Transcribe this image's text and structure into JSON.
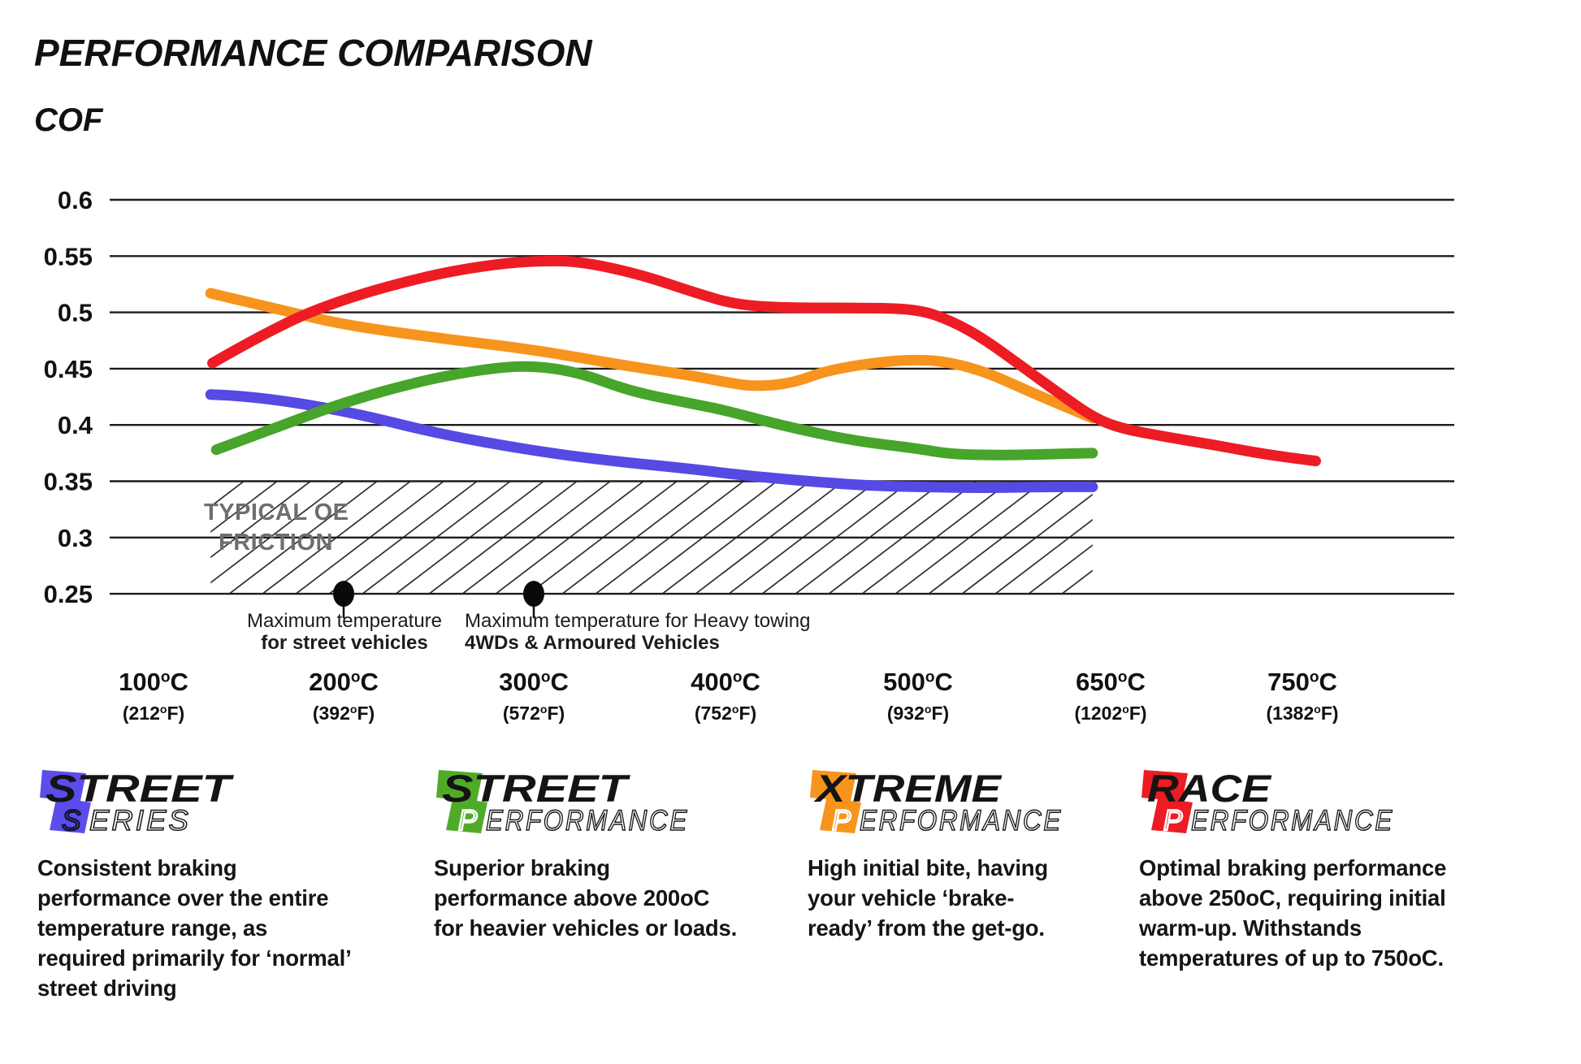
{
  "title": "PERFORMANCE COMPARISON",
  "cof_label": "COF",
  "chart_data": {
    "type": "line",
    "title": "PERFORMANCE COMPARISON",
    "ylabel": "COF",
    "xlabel": "",
    "ylim": [
      0.25,
      0.6
    ],
    "grid": true,
    "legend_position": "bottom",
    "y_ticks": [
      0.6,
      0.55,
      0.5,
      0.45,
      0.4,
      0.35,
      0.3,
      0.25
    ],
    "x_ticks": [
      {
        "value": 100,
        "c": "100°C",
        "f": "(212°F)"
      },
      {
        "value": 200,
        "c": "200°C",
        "f": "(392°F)"
      },
      {
        "value": 300,
        "c": "300°C",
        "f": "(572°F)"
      },
      {
        "value": 400,
        "c": "400°C",
        "f": "(752°F)"
      },
      {
        "value": 500,
        "c": "500°C",
        "f": "(932°F)"
      },
      {
        "value": 650,
        "c": "650°C",
        "f": "(1202°F)"
      },
      {
        "value": 750,
        "c": "750°C",
        "f": "(1382°F)"
      }
    ],
    "series": [
      {
        "name": "Street Series",
        "color": "#5649e4",
        "points": [
          [
            130,
            0.427
          ],
          [
            150,
            0.426
          ],
          [
            200,
            0.413
          ],
          [
            250,
            0.392
          ],
          [
            300,
            0.377
          ],
          [
            340,
            0.368
          ],
          [
            382,
            0.361
          ],
          [
            410,
            0.355
          ],
          [
            450,
            0.349
          ],
          [
            475,
            0.346
          ],
          [
            500,
            0.345
          ],
          [
            550,
            0.344
          ],
          [
            600,
            0.345
          ],
          [
            636,
            0.345
          ]
        ]
      },
      {
        "name": "Street Performance",
        "color": "#46a52a",
        "points": [
          [
            133,
            0.378
          ],
          [
            165,
            0.398
          ],
          [
            200,
            0.42
          ],
          [
            240,
            0.439
          ],
          [
            275,
            0.45
          ],
          [
            300,
            0.453
          ],
          [
            325,
            0.446
          ],
          [
            350,
            0.43
          ],
          [
            382,
            0.419
          ],
          [
            400,
            0.413
          ],
          [
            428,
            0.4
          ],
          [
            466,
            0.386
          ],
          [
            500,
            0.379
          ],
          [
            525,
            0.374
          ],
          [
            565,
            0.373
          ],
          [
            600,
            0.374
          ],
          [
            636,
            0.375
          ]
        ]
      },
      {
        "name": "Xtreme Performance",
        "color": "#f7941d",
        "points": [
          [
            130,
            0.517
          ],
          [
            170,
            0.501
          ],
          [
            200,
            0.489
          ],
          [
            250,
            0.477
          ],
          [
            300,
            0.467
          ],
          [
            350,
            0.452
          ],
          [
            382,
            0.444
          ],
          [
            400,
            0.438
          ],
          [
            415,
            0.434
          ],
          [
            435,
            0.437
          ],
          [
            455,
            0.45
          ],
          [
            500,
            0.46
          ],
          [
            545,
            0.451
          ],
          [
            590,
            0.428
          ],
          [
            636,
            0.406
          ]
        ]
      },
      {
        "name": "Race Performance",
        "color": "#ed1c24",
        "points": [
          [
            131,
            0.455
          ],
          [
            165,
            0.488
          ],
          [
            200,
            0.512
          ],
          [
            245,
            0.533
          ],
          [
            280,
            0.543
          ],
          [
            305,
            0.546
          ],
          [
            325,
            0.545
          ],
          [
            355,
            0.534
          ],
          [
            385,
            0.517
          ],
          [
            405,
            0.507
          ],
          [
            430,
            0.504
          ],
          [
            470,
            0.504
          ],
          [
            500,
            0.503
          ],
          [
            527,
            0.492
          ],
          [
            552,
            0.476
          ],
          [
            582,
            0.451
          ],
          [
            610,
            0.428
          ],
          [
            636,
            0.407
          ],
          [
            655,
            0.397
          ],
          [
            680,
            0.389
          ],
          [
            705,
            0.382
          ],
          [
            730,
            0.374
          ],
          [
            757,
            0.368
          ]
        ]
      }
    ],
    "oe_friction_band": {
      "cof_from": 0.25,
      "cof_to": 0.35,
      "temp_from_c": 130,
      "temp_to_c": 636,
      "label_line1": "TYPICAL OE",
      "label_line2": "FRICTION"
    },
    "markers": [
      {
        "temp_c": 200,
        "cof": 0.25,
        "line1": "Maximum temperature",
        "line2": "for street vehicles"
      },
      {
        "temp_c": 300,
        "cof": 0.25,
        "line1": "Maximum temperature for Heavy towing",
        "line2": "4WDs & Armoured Vehicles"
      }
    ]
  },
  "legends": [
    {
      "word": "STREET",
      "sub_first": "S",
      "sub_rest": "ERIES",
      "color": "#5b4deb",
      "sub_first_stroke": "#15152e",
      "description": "Consistent braking performance over the entire temperature range, as required primarily for ‘normal’ street driving"
    },
    {
      "word": "STREET",
      "sub_first": "P",
      "sub_rest": "ERFORMANCE",
      "color": "#4fab27",
      "sub_first_stroke": "#ffffff",
      "description": "Superior braking performance above 200oC for heavier vehicles or loads."
    },
    {
      "word": "XTREME",
      "sub_first": "P",
      "sub_rest": "ERFORMANCE",
      "color": "#f7941d",
      "sub_first_stroke": "#ffffff",
      "description": "High initial bite, having your vehicle ‘brake-ready’ from the get-go."
    },
    {
      "word": "RACE",
      "sub_first": "P",
      "sub_rest": "ERFORMANCE",
      "color": "#ed1c24",
      "sub_first_stroke": "#ffffff",
      "description": "Optimal braking performance above 250oC, requiring initial warm-up. Withstands temperatures of up to 750oC."
    }
  ]
}
